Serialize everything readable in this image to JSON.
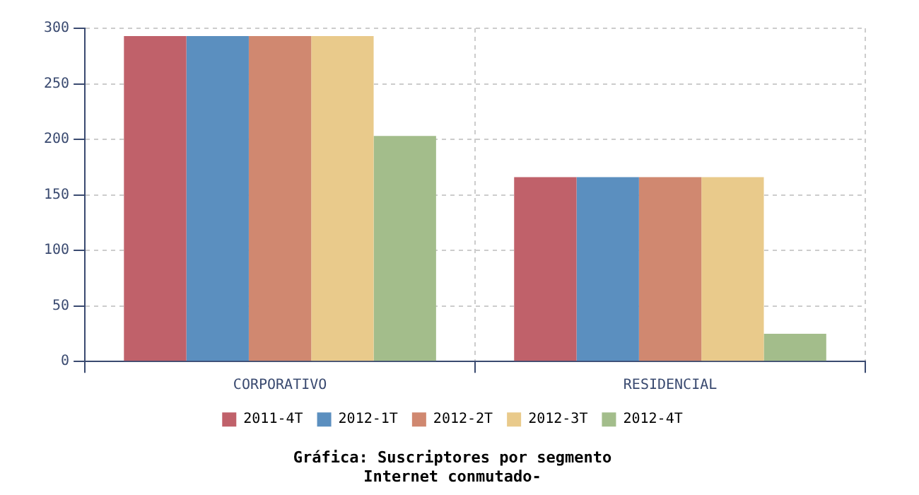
{
  "chart_data": {
    "type": "bar",
    "title": "Gráfica: Suscriptores por segmento",
    "subtitle": "Internet conmutado-",
    "categories": [
      "CORPORATIVO",
      "RESIDENCIAL"
    ],
    "series": [
      {
        "name": "2011-4T",
        "color": "#c0616a",
        "values": [
          293,
          166
        ]
      },
      {
        "name": "2012-1T",
        "color": "#5b8fbf",
        "values": [
          293,
          166
        ]
      },
      {
        "name": "2012-2T",
        "color": "#d08870",
        "values": [
          293,
          166
        ]
      },
      {
        "name": "2012-3T",
        "color": "#e9ca8b",
        "values": [
          293,
          166
        ]
      },
      {
        "name": "2012-4T",
        "color": "#a3bd8b",
        "values": [
          203,
          25
        ]
      }
    ],
    "ylim": [
      0,
      300
    ],
    "yticks": [
      0,
      50,
      100,
      150,
      200,
      250,
      300
    ],
    "grid": true,
    "legend": "bottom"
  }
}
